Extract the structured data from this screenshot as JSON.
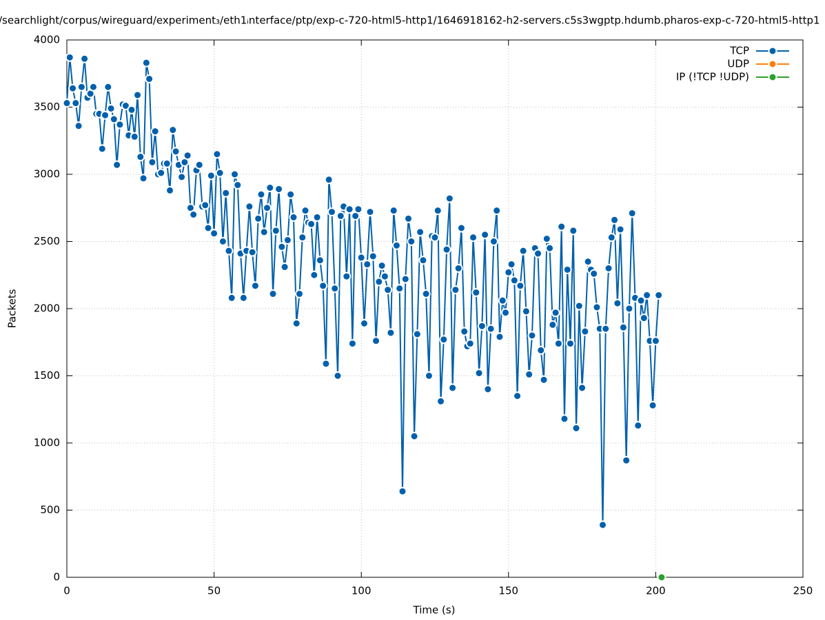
{
  "chart_data": {
    "type": "line",
    "title": "/searchlight/corpus/wireguard/experiment₃/eth1ᵢnterface/ptp/exp-c-720-html5-http1/1646918162-h2-servers.c5s3wgptp.hdumb.pharos-exp-c-720-html5-http1",
    "xlabel": "Time (s)",
    "ylabel": "Packets",
    "xlim": [
      0,
      250
    ],
    "xticks": [
      0,
      50,
      100,
      150,
      200,
      250
    ],
    "ylim": [
      0,
      4000
    ],
    "yticks": [
      0,
      500,
      1000,
      1500,
      2000,
      2500,
      3000,
      3500,
      4000
    ],
    "grid": true,
    "legend": "top-right",
    "series": [
      {
        "name": "TCP",
        "color": "#0060ad",
        "x": [
          0,
          1,
          2,
          3,
          4,
          5,
          6,
          7,
          8,
          9,
          10,
          11,
          12,
          13,
          14,
          15,
          16,
          17,
          18,
          19,
          20,
          21,
          22,
          23,
          24,
          25,
          26,
          27,
          28,
          29,
          30,
          31,
          32,
          33,
          34,
          35,
          36,
          37,
          38,
          39,
          40,
          41,
          42,
          43,
          44,
          45,
          46,
          47,
          48,
          49,
          50,
          51,
          52,
          53,
          54,
          55,
          56,
          57,
          58,
          59,
          60,
          61,
          62,
          63,
          64,
          65,
          66,
          67,
          68,
          69,
          70,
          71,
          72,
          73,
          74,
          75,
          76,
          77,
          78,
          79,
          80,
          81,
          82,
          83,
          84,
          85,
          86,
          87,
          88,
          89,
          90,
          91,
          92,
          93,
          94,
          95,
          96,
          97,
          98,
          99,
          100,
          101,
          102,
          103,
          104,
          105,
          106,
          107,
          108,
          109,
          110,
          111,
          112,
          113,
          114,
          115,
          116,
          117,
          118,
          119,
          120,
          121,
          122,
          123,
          124,
          125,
          126,
          127,
          128,
          129,
          130,
          131,
          132,
          133,
          134,
          135,
          136,
          137,
          138,
          139,
          140,
          141,
          142,
          143,
          144,
          145,
          146,
          147,
          148,
          149,
          150,
          151,
          152,
          153,
          154,
          155,
          156,
          157,
          158,
          159,
          160,
          161,
          162,
          163,
          164,
          165,
          166,
          167,
          168,
          169,
          170,
          171,
          172,
          173,
          174,
          175,
          176,
          177,
          178,
          179,
          180,
          181,
          182,
          183,
          184,
          185,
          186,
          187,
          188,
          189,
          190,
          191,
          192,
          193,
          194,
          195,
          196,
          197,
          198,
          199,
          200,
          201
        ],
        "values": [
          3530,
          3870,
          3640,
          3530,
          3360,
          3650,
          3860,
          3570,
          3600,
          3650,
          3450,
          3450,
          3190,
          3440,
          3650,
          3490,
          3410,
          3070,
          3370,
          3520,
          3510,
          3290,
          3480,
          3280,
          3590,
          3130,
          2970,
          3830,
          3710,
          3090,
          3320,
          3000,
          3010,
          3080,
          3080,
          2880,
          3330,
          3170,
          3070,
          2980,
          3090,
          3140,
          2750,
          2700,
          3030,
          3070,
          2760,
          2770,
          2600,
          2990,
          2560,
          3150,
          3010,
          2500,
          2860,
          2430,
          2080,
          3000,
          2920,
          2410,
          2080,
          2430,
          2760,
          2420,
          2170,
          2670,
          2850,
          2570,
          2750,
          2900,
          2110,
          2580,
          2890,
          2460,
          2310,
          2510,
          2850,
          2680,
          1890,
          2110,
          2530,
          2730,
          2640,
          2630,
          2250,
          2680,
          2360,
          2170,
          1590,
          2960,
          2720,
          2150,
          1500,
          2690,
          2760,
          2240,
          2740,
          1740,
          2690,
          2740,
          2380,
          1890,
          2330,
          2720,
          2390,
          1760,
          2200,
          2320,
          2240,
          2140,
          1820,
          2730,
          2470,
          2150,
          640,
          2220,
          2670,
          2500,
          1050,
          1810,
          2570,
          2360,
          2110,
          1500,
          2540,
          2530,
          2730,
          1310,
          1770,
          2440,
          2820,
          1410,
          2140,
          2300,
          2600,
          1830,
          1720,
          1740,
          2530,
          2120,
          1520,
          1870,
          2550,
          1400,
          1850,
          2500,
          2730,
          1790,
          2060,
          1970,
          2270,
          2330,
          2210,
          1350,
          2170,
          2430,
          1980,
          1510,
          1800,
          2450,
          2410,
          1690,
          1470,
          2520,
          2450,
          1880,
          1970,
          1740,
          2610,
          1180,
          2290,
          1740,
          2580,
          1110,
          2020,
          1410,
          1830,
          2350,
          2290,
          2260,
          2010,
          1850,
          390,
          1850,
          2300,
          2530,
          2660,
          2040,
          2590,
          1860,
          870,
          2000,
          2710,
          2080,
          1130,
          2060,
          1930,
          2100,
          1760,
          1280,
          1760,
          2100
        ]
      },
      {
        "name": "UDP",
        "color": "#ff7f0e",
        "x": [],
        "values": []
      },
      {
        "name": "IP (!TCP  !UDP)",
        "color": "#2ca02c",
        "x": [
          202
        ],
        "values": [
          0
        ]
      }
    ]
  }
}
